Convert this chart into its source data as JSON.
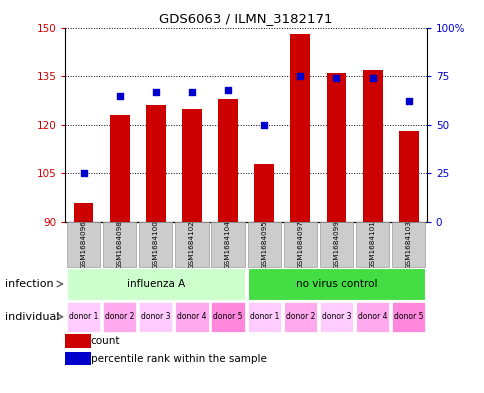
{
  "title": "GDS6063 / ILMN_3182171",
  "samples": [
    "GSM1684096",
    "GSM1684098",
    "GSM1684100",
    "GSM1684102",
    "GSM1684104",
    "GSM1684095",
    "GSM1684097",
    "GSM1684099",
    "GSM1684101",
    "GSM1684103"
  ],
  "counts": [
    96,
    123,
    126,
    125,
    128,
    108,
    148,
    136,
    137,
    118
  ],
  "percentiles": [
    25,
    65,
    67,
    67,
    68,
    50,
    75,
    74,
    74,
    62
  ],
  "ylim_left": [
    90,
    150
  ],
  "ylim_right": [
    0,
    100
  ],
  "yticks_left": [
    90,
    105,
    120,
    135,
    150
  ],
  "yticks_right": [
    0,
    25,
    50,
    75,
    100
  ],
  "bar_color": "#cc0000",
  "dot_color": "#0000cc",
  "infection_groups": [
    {
      "label": "influenza A",
      "start": 0,
      "end": 5,
      "color": "#ccffcc"
    },
    {
      "label": "no virus control",
      "start": 5,
      "end": 10,
      "color": "#44dd44"
    }
  ],
  "individual_labels": [
    "donor 1",
    "donor 2",
    "donor 3",
    "donor 4",
    "donor 5",
    "donor 1",
    "donor 2",
    "donor 3",
    "donor 4",
    "donor 5"
  ],
  "ind_colors": [
    "#ffccff",
    "#ffaaee",
    "#ffccff",
    "#ffaaee",
    "#ff88dd",
    "#ffccff",
    "#ffaaee",
    "#ffccff",
    "#ffaaee",
    "#ff88dd"
  ],
  "infection_label": "infection",
  "individual_label": "individual",
  "legend_count_label": "count",
  "legend_percentile_label": "percentile rank within the sample",
  "background_color": "#ffffff",
  "tick_color_left": "#cc0000",
  "tick_color_right": "#0000cc",
  "sample_box_color": "#cccccc",
  "sample_box_edge": "#999999"
}
